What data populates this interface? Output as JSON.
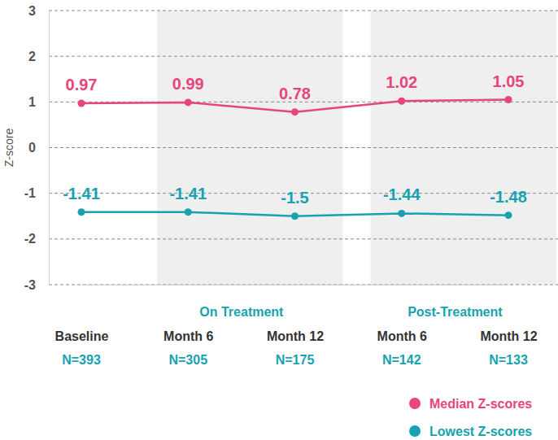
{
  "chart_data": {
    "type": "line",
    "y_label": "Z-score",
    "categories": [
      "Baseline",
      "Month 6",
      "Month 12",
      "Month 6",
      "Month 12"
    ],
    "annotations": [
      "N=393",
      "N=305",
      "N=175",
      "N=142",
      "N=133"
    ],
    "groups": [
      {
        "label": "On Treatment",
        "from": 1,
        "to": 2
      },
      {
        "label": "Post-Treatment",
        "from": 3,
        "to": 4
      }
    ],
    "series": [
      {
        "name": "Median Z-scores",
        "color": "#e8457a",
        "values": [
          0.97,
          0.99,
          0.78,
          1.02,
          1.05
        ]
      },
      {
        "name": "Lowest Z-scores",
        "color": "#17a2b0",
        "values": [
          -1.41,
          -1.41,
          -1.5,
          -1.44,
          -1.48
        ]
      }
    ],
    "ylim": [
      -3,
      3
    ],
    "yticks": [
      -3,
      -2,
      -1,
      0,
      1,
      2,
      3
    ],
    "grid": true,
    "data_labels": true,
    "legend": "bottom-right",
    "marker": "circle"
  }
}
